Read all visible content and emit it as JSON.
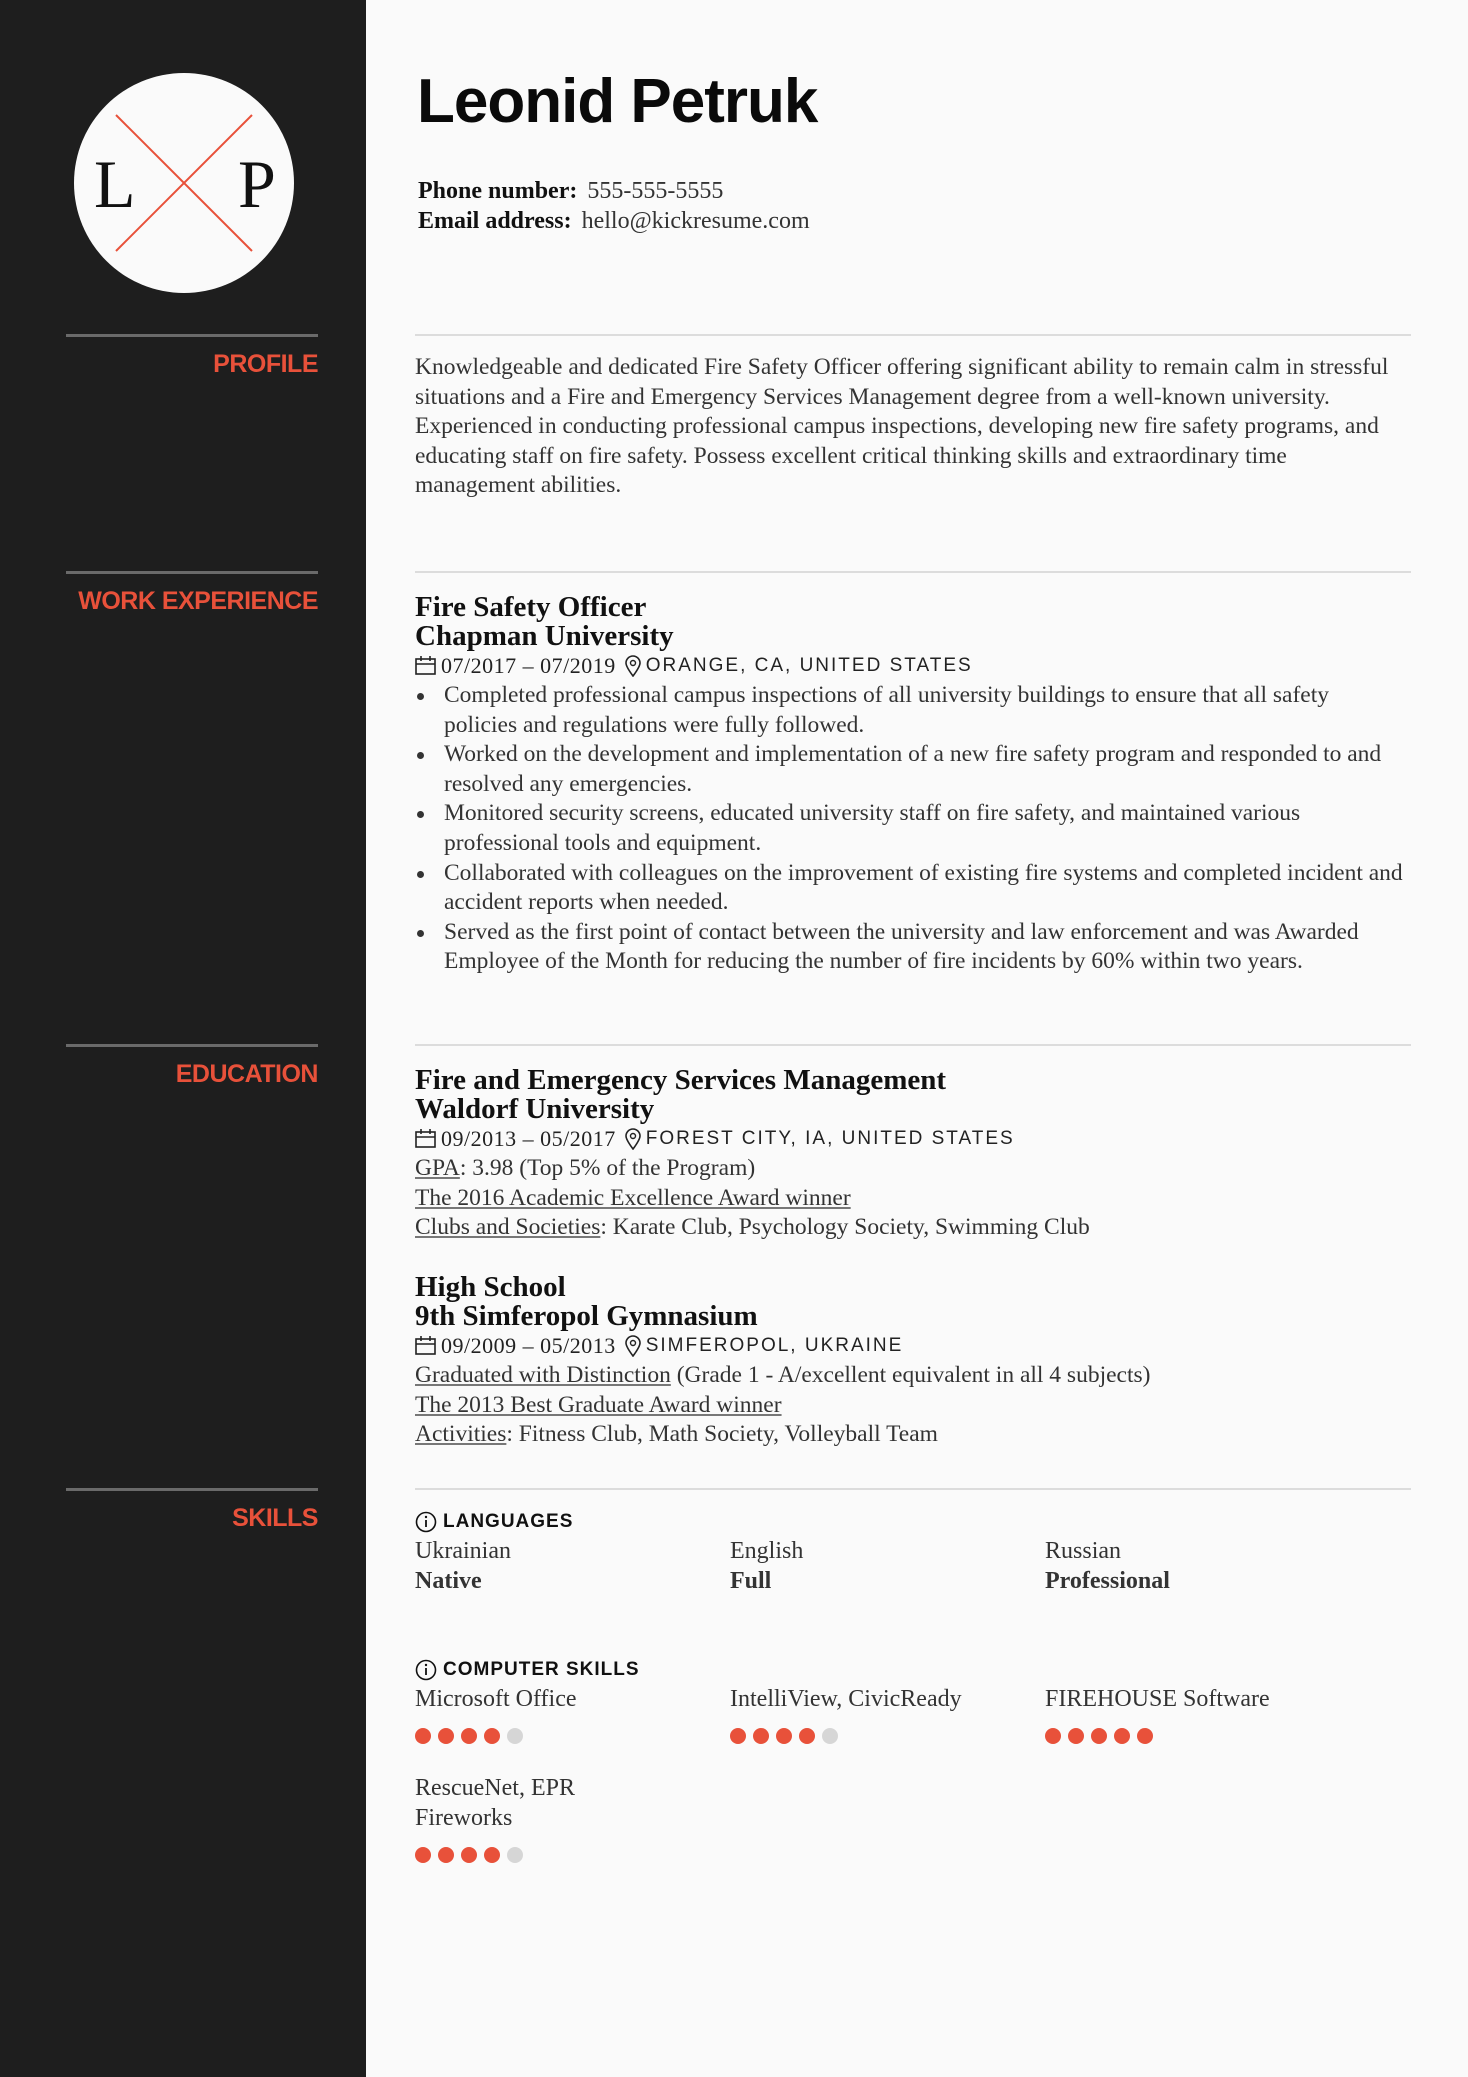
{
  "monogram": {
    "left": "L",
    "right": "P"
  },
  "name": "Leonid Petruk",
  "contact": {
    "phone_label": "Phone number:",
    "phone": "555-555-5555",
    "email_label": "Email address:",
    "email": "hello@kickresume.com"
  },
  "sections": {
    "profile": "PROFILE",
    "work": "WORK EXPERIENCE",
    "education": "EDUCATION",
    "skills": "SKILLS"
  },
  "profile": "Knowledgeable and dedicated Fire Safety Officer offering significant ability to remain calm in stressful situations and a Fire and Emergency Services Management degree from a well-known university. Experienced in conducting professional campus inspections, developing new fire safety programs, and educating staff on fire safety. Possess excellent critical thinking skills and extraordinary time management abilities.",
  "work": [
    {
      "title": "Fire Safety Officer",
      "org": "Chapman University",
      "dates": "07/2017 – 07/2019",
      "location": "ORANGE, CA, UNITED STATES",
      "bullets": [
        "Completed professional campus inspections of all university buildings to ensure that all safety policies and regulations were fully followed.",
        "Worked on the development and implementation of a new fire safety program and responded to and resolved any emergencies.",
        "Monitored security screens, educated university staff on fire safety, and maintained various professional tools and equipment.",
        "Collaborated with colleagues on the improvement of existing fire systems and completed incident and accident reports when needed.",
        "Served as the first point of contact between the university and law enforcement and was Awarded Employee of the Month for reducing the number of fire incidents by 60% within two years."
      ]
    }
  ],
  "education": [
    {
      "title": "Fire and Emergency Services Management",
      "org": "Waldorf University",
      "dates": "09/2013 – 05/2017",
      "location": "FOREST CITY, IA, UNITED STATES",
      "lines": [
        {
          "link": "GPA",
          "text": ": 3.98 (Top 5% of the Program)"
        },
        {
          "link": "The 2016 Academic Excellence Award winner",
          "text": ""
        },
        {
          "link": "Clubs and Societies",
          "text": ": Karate Club, Psychology Society, Swimming Club"
        }
      ]
    },
    {
      "title": "High School",
      "org": "9th Simferopol Gymnasium",
      "dates": "09/2009 – 05/2013",
      "location": "SIMFEROPOL, UKRAINE",
      "lines": [
        {
          "link": "Graduated with Distinction",
          "text": " (Grade 1 - A/excellent equivalent in all 4 subjects)"
        },
        {
          "link": "The 2013 Best Graduate Award winner",
          "text": ""
        },
        {
          "link": "Activities",
          "text": ": Fitness Club, Math Society, Volleyball Team"
        }
      ]
    }
  ],
  "skills": {
    "languages_title": "LANGUAGES",
    "languages": [
      {
        "name": "Ukrainian",
        "level": "Native"
      },
      {
        "name": "English",
        "level": "Full"
      },
      {
        "name": "Russian",
        "level": "Professional"
      }
    ],
    "computer_title": "COMPUTER SKILLS",
    "computer": [
      {
        "name": "Microsoft Office",
        "rating": 4,
        "max": 5
      },
      {
        "name": "IntelliView, CivicReady",
        "rating": 4,
        "max": 5
      },
      {
        "name": "FIREHOUSE Software",
        "rating": 5,
        "max": 5
      },
      {
        "name": "RescueNet, EPR Fireworks",
        "rating": 4,
        "max": 5
      }
    ]
  },
  "colors": {
    "accent": "#e8513a",
    "sidebar": "#1e1e1e",
    "dot_off": "#d6d6d6"
  }
}
